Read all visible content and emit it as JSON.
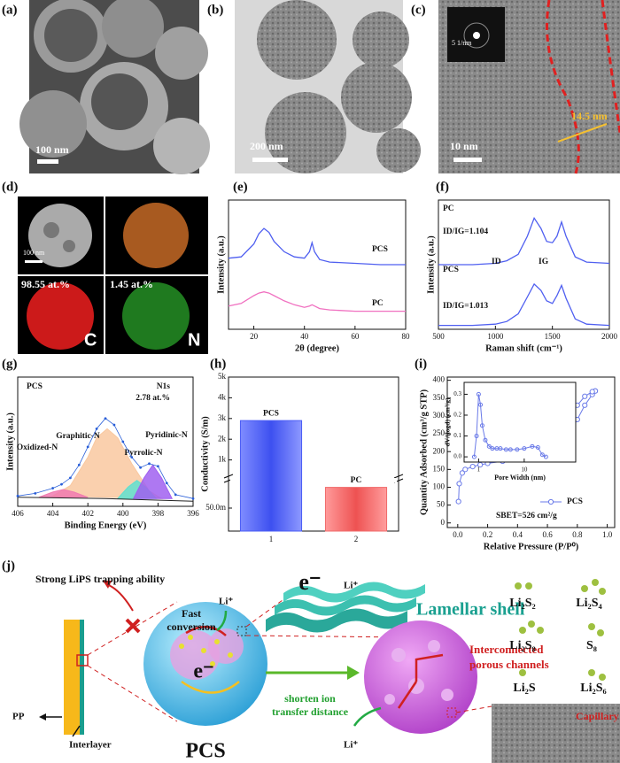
{
  "panel_labels": [
    "(a)",
    "(b)",
    "(c)",
    "(d)",
    "(e)",
    "(f)",
    "(g)",
    "(h)",
    "(i)",
    "(j)"
  ],
  "images": {
    "a": {
      "scale_bar": "100 nm"
    },
    "b": {
      "scale_bar": "200 nm"
    },
    "c": {
      "scale_bar": "10 nm",
      "inset_scale": "5 1/nm",
      "thickness": "14.5 nm"
    },
    "d": {
      "scale_bar": "100 nm",
      "c_content": "98.55 at.%",
      "n_content": "1.45 at.%",
      "c_label": "C",
      "n_label": "N"
    }
  },
  "chart_data": [
    {
      "type": "line",
      "xlabel": "2θ (degree)",
      "ylabel": "Intensity (a.u.)",
      "x": [
        10,
        15,
        20,
        22,
        24,
        26,
        28,
        32,
        36,
        40,
        42,
        43,
        44,
        46,
        50,
        60,
        70,
        80
      ],
      "series": [
        {
          "name": "PCS",
          "color": "#4f5ff0",
          "values": [
            0.55,
            0.56,
            0.66,
            0.74,
            0.78,
            0.75,
            0.68,
            0.6,
            0.56,
            0.55,
            0.6,
            0.67,
            0.6,
            0.54,
            0.52,
            0.51,
            0.5,
            0.5
          ]
        },
        {
          "name": "PC",
          "color": "#f070c0",
          "values": [
            0.18,
            0.2,
            0.26,
            0.28,
            0.29,
            0.28,
            0.26,
            0.22,
            0.19,
            0.17,
            0.18,
            0.19,
            0.18,
            0.16,
            0.15,
            0.14,
            0.14,
            0.14
          ]
        }
      ],
      "xlim": [
        10,
        80
      ],
      "xticks": [
        20,
        40,
        60,
        80
      ],
      "ylim": [
        0,
        1
      ]
    },
    {
      "type": "line",
      "xlabel": "Raman shift (cm⁻¹)",
      "ylabel": "Intensity (a.u.)",
      "x": [
        500,
        800,
        1000,
        1100,
        1200,
        1280,
        1340,
        1400,
        1450,
        1500,
        1540,
        1580,
        1620,
        1700,
        1800,
        2000
      ],
      "series": [
        {
          "name": "PC",
          "color": "#4f5ff0",
          "values": [
            0.5,
            0.5,
            0.51,
            0.53,
            0.58,
            0.72,
            0.86,
            0.78,
            0.68,
            0.67,
            0.72,
            0.83,
            0.72,
            0.56,
            0.52,
            0.51
          ]
        },
        {
          "name": "PCS",
          "color": "#4f5ff0",
          "values": [
            0.03,
            0.03,
            0.04,
            0.06,
            0.12,
            0.25,
            0.35,
            0.3,
            0.22,
            0.2,
            0.26,
            0.34,
            0.24,
            0.08,
            0.04,
            0.03
          ]
        }
      ],
      "annotations": [
        "ID/IG=1.104",
        "ID",
        "IG",
        "ID/IG=1.013"
      ],
      "xlim": [
        500,
        2000
      ],
      "xticks": [
        500,
        1000,
        1500,
        2000
      ],
      "ylim": [
        0,
        1
      ]
    },
    {
      "type": "area",
      "xlabel": "Binding Energy (eV)",
      "ylabel": "Intensity (a.u.)",
      "annotations": [
        "PCS",
        "N1s",
        "2.78 at.%"
      ],
      "series": [
        {
          "name": "Graphitic-N",
          "color": "#f9c8a0",
          "x": [
            404,
            403,
            402,
            401.5,
            400.9,
            400.3,
            399.5,
            398.5,
            397.8
          ],
          "values": [
            0.08,
            0.16,
            0.38,
            0.53,
            0.6,
            0.53,
            0.33,
            0.12,
            0.06
          ]
        },
        {
          "name": "Oxidized-N",
          "color": "#f07ab0",
          "x": [
            404.8,
            404,
            403.4,
            402.8,
            402
          ],
          "values": [
            0.07,
            0.11,
            0.13,
            0.11,
            0.07
          ]
        },
        {
          "name": "Pyrrolic-N",
          "color": "#5ee0d0",
          "x": [
            400.3,
            399.7,
            399.2,
            398.7,
            398.1
          ],
          "values": [
            0.06,
            0.15,
            0.2,
            0.15,
            0.06
          ]
        },
        {
          "name": "Pyridinic-N",
          "color": "#a060f0",
          "x": [
            399.4,
            398.8,
            398.3,
            397.8,
            397.2
          ],
          "values": [
            0.06,
            0.22,
            0.32,
            0.22,
            0.06
          ]
        },
        {
          "color": "#222222",
          "x": [
            406,
            401,
            396
          ],
          "values": [
            0.07,
            0.06,
            0.04
          ]
        },
        {
          "color": "#2a5fd8",
          "marker": "dot",
          "x": [
            406,
            405,
            404,
            403.5,
            403,
            402.5,
            402,
            401.5,
            401,
            400.5,
            400,
            399.5,
            399,
            398.5,
            398,
            397.5,
            397,
            396
          ],
          "values": [
            0.08,
            0.1,
            0.14,
            0.17,
            0.22,
            0.32,
            0.46,
            0.6,
            0.68,
            0.63,
            0.5,
            0.38,
            0.3,
            0.33,
            0.31,
            0.18,
            0.09,
            0.06
          ]
        }
      ],
      "xlim": [
        406,
        396
      ],
      "xticks": [
        406,
        404,
        402,
        400,
        398,
        396
      ],
      "ylim": [
        0,
        1
      ]
    },
    {
      "type": "bar",
      "ylabel": "Conductivity (S/m)",
      "categories": [
        "1",
        "2"
      ],
      "values": [
        2900,
        0.095
      ],
      "bar_labels": [
        "PCS",
        "PC"
      ],
      "colors": [
        "#4a5cf5",
        "#f06a6a"
      ],
      "ylim_segments": [
        [
          0,
          0.1
        ],
        [
          0.1,
          5000
        ]
      ],
      "yticks": [
        {
          "value": 0.05,
          "label": "50.0m"
        },
        {
          "value": 1000,
          "label": "1k"
        },
        {
          "value": 2000,
          "label": "2k"
        },
        {
          "value": 3000,
          "label": "3k"
        },
        {
          "value": 4000,
          "label": "4k"
        },
        {
          "value": 5000,
          "label": "5k"
        }
      ]
    },
    {
      "type": "scatter",
      "xlabel": "Relative Pressure (P/P⁰)",
      "ylabel": "Quantity Adsorbed (cm³/g STP)",
      "annotations": [
        "SBET=526 cm²/g"
      ],
      "series": [
        {
          "name": "PCS",
          "color": "#6a7ae8",
          "x": [
            0.005,
            0.01,
            0.03,
            0.05,
            0.1,
            0.15,
            0.2,
            0.3,
            0.4,
            0.5,
            0.6,
            0.65,
            0.7,
            0.75,
            0.8,
            0.85,
            0.9,
            0.92
          ],
          "values": [
            60,
            110,
            140,
            150,
            158,
            163,
            167,
            173,
            180,
            188,
            200,
            210,
            225,
            250,
            290,
            330,
            360,
            370
          ]
        },
        {
          "color": "#6a7ae8",
          "x": [
            0.92,
            0.9,
            0.85,
            0.8,
            0.75,
            0.7,
            0.65,
            0.6,
            0.55,
            0.5,
            0.45
          ],
          "values": [
            370,
            368,
            355,
            330,
            300,
            270,
            240,
            215,
            200,
            190,
            182
          ]
        }
      ],
      "xlim": [
        -0.07,
        1.05
      ],
      "xticks": [
        {
          "value": 0,
          "label": "0.0"
        },
        0.2,
        0.4,
        0.6,
        0.8,
        {
          "value": 1,
          "label": "1.0"
        }
      ],
      "ylim": [
        -13,
        409
      ],
      "yticks": [
        0,
        50,
        100,
        150,
        200,
        250,
        300,
        350,
        400
      ],
      "inset": {
        "type": "line",
        "xlabel": "Pore Width (nm)",
        "ylabel": "dV/(logd) (cm³/g)",
        "xscale": "log",
        "x": [
          0.8,
          0.9,
          1,
          1.1,
          1.2,
          1.4,
          1.7,
          2,
          2.5,
          3,
          4,
          5,
          7,
          10,
          15,
          20,
          25,
          30
        ],
        "series": [
          {
            "color": "#6a7ae8",
            "values": [
              0.0,
              0.1,
              0.3,
              0.25,
              0.15,
              0.08,
              0.05,
              0.04,
              0.04,
              0.04,
              0.035,
              0.035,
              0.035,
              0.04,
              0.05,
              0.045,
              0.01,
              0.0
            ]
          }
        ],
        "xlim": [
          0.48,
          135
        ],
        "xticks": [
          1,
          10
        ],
        "ylim": [
          -0.025,
          0.357
        ],
        "yticks": [
          {
            "value": 0,
            "label": "0.0"
          },
          0.1,
          0.2,
          0.3
        ]
      }
    }
  ],
  "schematic": {
    "trapping": "Strong LiPS trapping ability",
    "fast": "Fast",
    "conversion": "conversion",
    "li_1": "Li⁺",
    "e_1": "e⁻",
    "e_2": "e⁻",
    "li_2": "Li⁺",
    "shell": "Lamellar shell",
    "channels_1": "Interconnected",
    "channels_2": "porous channels",
    "shorten_1": "shorten ion",
    "shorten_2": "transfer distance",
    "pp": "PP",
    "interlayer": "Interlayer",
    "pcs": "PCS",
    "li_3": "Li⁺",
    "capillary": "Capillary",
    "species": [
      "Li₂S₂",
      "Li₂S₄",
      "Li₂S₈",
      "S₈",
      "Li₂S",
      "Li₂S₆"
    ]
  }
}
